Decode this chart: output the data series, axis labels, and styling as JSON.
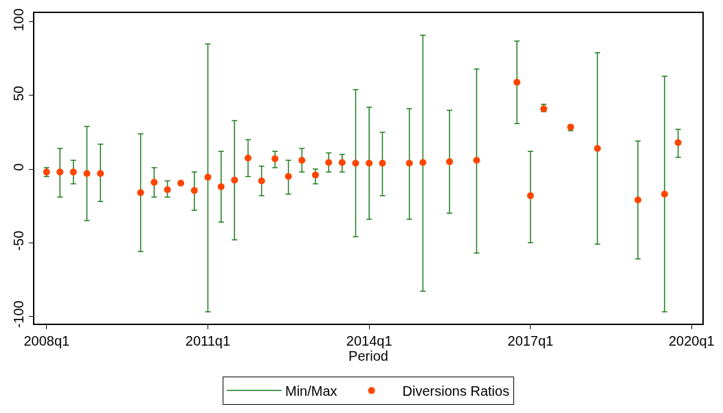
{
  "chart_data": {
    "type": "scatter",
    "xlabel": "Period",
    "x": [
      "2008-01",
      "2008-04",
      "2008-07",
      "2008-10",
      "2009-01",
      "2009-10",
      "2010-01",
      "2010-04",
      "2010-07",
      "2010-10",
      "2011-01",
      "2011-04",
      "2011-07",
      "2011-10",
      "2012-01",
      "2012-04",
      "2012-07",
      "2012-10",
      "2013-01",
      "2013-04",
      "2013-07",
      "2013-10",
      "2014-01",
      "2014-04",
      "2014-10",
      "2015-01",
      "2015-07",
      "2016-01",
      "2016-10",
      "2017-01",
      "2017-04",
      "2017-10",
      "2018-04",
      "2019-01",
      "2019-07",
      "2019-10"
    ],
    "series": [
      {
        "name": "Min/Max",
        "type": "line",
        "color": "#1e7b1e",
        "values": [
          null,
          null,
          null,
          null,
          null,
          null,
          null,
          null,
          null,
          null,
          null,
          null,
          null,
          null,
          null,
          null,
          null,
          null,
          null,
          null,
          null,
          null,
          null,
          null,
          null,
          null,
          null,
          null,
          null,
          null,
          null,
          null,
          null,
          null,
          null,
          null
        ]
      },
      {
        "name": "Diversions Ratios",
        "color": "#ff4500",
        "marker": "circle",
        "values": [
          -2,
          -2,
          -2,
          -3,
          -3,
          -16,
          -9,
          -14,
          -9.5,
          -14.5,
          -5.5,
          -12,
          -7.5,
          7.5,
          -8,
          7,
          -5,
          6,
          -4,
          4.5,
          4.5,
          4,
          4,
          4,
          4,
          4.5,
          5,
          6,
          59,
          -18,
          41,
          28.5,
          14,
          -21,
          -17,
          18
        ],
        "errors": [
          [
            -5,
            1
          ],
          [
            -19,
            14
          ],
          [
            -10,
            6
          ],
          [
            -35,
            29
          ],
          [
            -22,
            17
          ],
          [
            -56,
            24
          ],
          [
            -19,
            1
          ],
          [
            -19,
            -8
          ],
          [
            -10,
            -9
          ],
          [
            -28,
            -2
          ],
          [
            -97,
            85
          ],
          [
            -36,
            12
          ],
          [
            -48,
            33
          ],
          [
            -5,
            20
          ],
          [
            -18,
            2
          ],
          [
            1,
            12
          ],
          [
            -17,
            6
          ],
          [
            -2,
            14
          ],
          [
            -10,
            0
          ],
          [
            -2,
            11
          ],
          [
            -2,
            10
          ],
          [
            -46,
            54
          ],
          [
            -34,
            42
          ],
          [
            -18,
            25
          ],
          [
            -34,
            41
          ],
          [
            -83,
            91
          ],
          [
            -30,
            40
          ],
          [
            -57,
            68
          ],
          [
            31,
            87
          ],
          [
            -50,
            12
          ],
          [
            39,
            44
          ],
          [
            26,
            30
          ],
          [
            -51,
            79
          ],
          [
            -61,
            19
          ],
          [
            -97,
            63
          ],
          [
            8,
            27
          ]
        ]
      }
    ],
    "xlim": [
      "2007-10-10",
      "2020-03-14"
    ],
    "xticks": [
      {
        "value": "2008-01",
        "label": "2008q1"
      },
      {
        "value": "2011-01",
        "label": "2011q1"
      },
      {
        "value": "2014-01",
        "label": "2014q1"
      },
      {
        "value": "2017-01",
        "label": "2017q1"
      },
      {
        "value": "2020-01",
        "label": "2020q1"
      }
    ],
    "ylim": [
      -105,
      106
    ],
    "yticks": [
      -100,
      -50,
      0,
      50,
      100
    ],
    "grid": false,
    "legend": "bottom"
  }
}
